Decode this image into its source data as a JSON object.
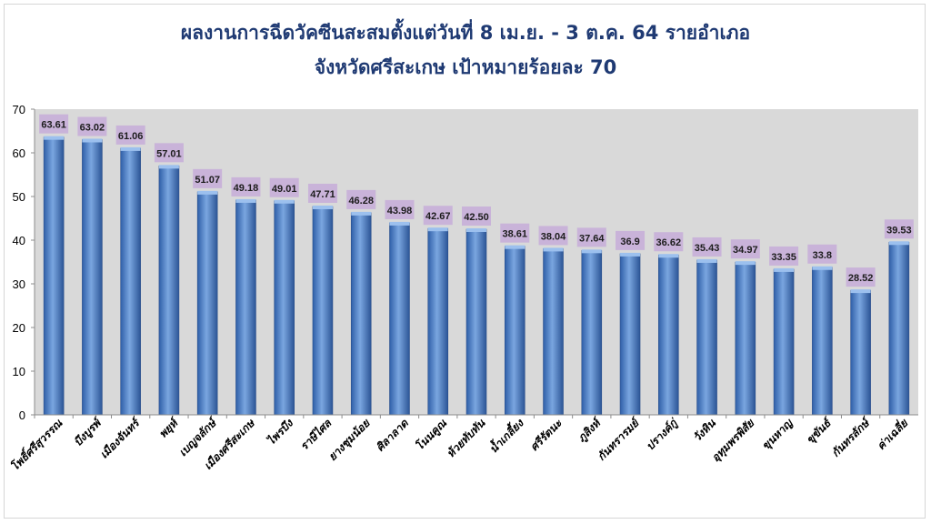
{
  "chart_data": {
    "type": "bar",
    "title": "ผลงานการฉีดวัคซีนสะสมตั้งแต่วันที่ 8 เม.ย. - 3 ต.ค. 64 รายอำเภอ",
    "subtitle": "จังหวัดศรีสะเกษ เป้าหมายร้อยละ 70",
    "xlabel": "",
    "ylabel": "",
    "ylim": [
      0,
      70
    ],
    "yticks": [
      0,
      10,
      20,
      30,
      40,
      50,
      60,
      70
    ],
    "grid": false,
    "legend": "none",
    "bar_color": "#4f7fc2",
    "label_bg_color": "#c9b3d9",
    "plot_bg_color": "#d9d9d9",
    "categories": [
      "โพธิ์ศรีสุวรรณ",
      "บึงบูรพ์",
      "เมืองจันทร์",
      "พยุห์",
      "เบญจลักษ์",
      "เมืองศรีสะเกษ",
      "ไพรบึง",
      "ราษีไศล",
      "ยางชุมน้อย",
      "ศิลาลาด",
      "โนนคูณ",
      "ห้วยทับทัน",
      "น้ำเกลี้ยง",
      "ศรีรัตนะ",
      "ภูสิงห์",
      "กันทรารมย์",
      "ปรางค์กู่",
      "วังหิน",
      "อุทุมพรพิสัย",
      "ขุนหาญ",
      "ขุขันธ์",
      "กันทรลักษ์",
      "ค่าเฉลี่ย"
    ],
    "values": [
      63.61,
      63.02,
      61.06,
      57.01,
      51.07,
      49.18,
      49.01,
      47.71,
      46.28,
      43.98,
      42.67,
      42.5,
      38.61,
      38.04,
      37.64,
      36.9,
      36.62,
      35.43,
      34.97,
      33.35,
      33.8,
      28.52,
      39.53
    ],
    "value_labels": [
      "63.61",
      "63.02",
      "61.06",
      "57.01",
      "51.07",
      "49.18",
      "49.01",
      "47.71",
      "46.28",
      "43.98",
      "42.67",
      "42.50",
      "38.61",
      "38.04",
      "37.64",
      "36.9",
      "36.62",
      "35.43",
      "34.97",
      "33.35",
      "33.8",
      "28.52",
      "39.53"
    ]
  }
}
